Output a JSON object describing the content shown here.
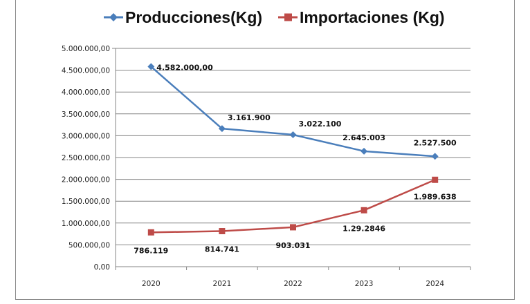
{
  "chart_data": {
    "type": "line",
    "title": "",
    "xlabel": "",
    "ylabel": "",
    "x": [
      "2020",
      "2021",
      "2022",
      "2023",
      "2024"
    ],
    "ylim": [
      0,
      5000000
    ],
    "yticks": [
      0,
      500000,
      1000000,
      1500000,
      2000000,
      2500000,
      3000000,
      3500000,
      4000000,
      4500000,
      5000000
    ],
    "ytick_labels": [
      "0,00",
      "500.000,00",
      "1.000.000,00",
      "1.500.000,00",
      "2.000.000,00",
      "2.500.000,00",
      "3.000.000,00",
      "3.500.000,00",
      "4.000.000,00",
      "4.500.000,00",
      "5.000.000,00"
    ],
    "grid": true,
    "legend_position": "top",
    "series": [
      {
        "name": "Producciones(Kg)",
        "color": "#4a7ebb",
        "marker": "diamond",
        "values": [
          4582000,
          3161900,
          3022100,
          2645003,
          2527500
        ],
        "labels": [
          "4.582.000,00",
          "3.161.900",
          "3.022.100",
          "2.645.003",
          "2.527.500"
        ]
      },
      {
        "name": "Importaciones (Kg)",
        "color": "#be4b48",
        "marker": "square",
        "values": [
          786119,
          814741,
          903031,
          1292846,
          1989638
        ],
        "labels": [
          "786.119",
          "814.741",
          "903.031",
          "1.29.2846",
          "1.989.638"
        ]
      }
    ]
  }
}
